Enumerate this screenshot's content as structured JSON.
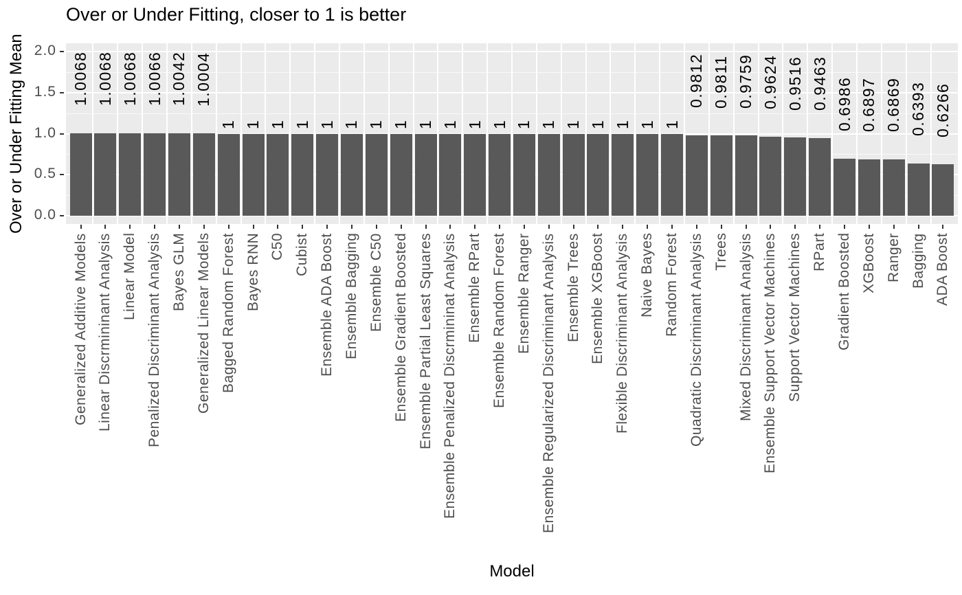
{
  "chart_data": {
    "type": "bar",
    "title": "Over or Under Fitting, closer to 1 is better",
    "xlabel": "Model",
    "ylabel": "Over or Under Fitting Mean",
    "ylim": [
      -0.1,
      2.1
    ],
    "yticks_major": [
      0.0,
      0.5,
      1.0,
      1.5,
      2.0
    ],
    "ytick_labels": [
      "0.0",
      "0.5",
      "1.0",
      "1.5",
      "2.0"
    ],
    "yticks_minor": [
      0.25,
      0.75,
      1.25,
      1.75
    ],
    "legend_position": "none",
    "grid": "white horizontal major/minor lines and white vertical separators on light gray panel",
    "bar_label_rotation_deg": 90,
    "x_label_rotation_deg": 90,
    "bars": [
      {
        "label": "Generalized Additive Models",
        "value": 1.0068,
        "value_label": "1.0068"
      },
      {
        "label": "Linear Discrmininant Analysis",
        "value": 1.0068,
        "value_label": "1.0068"
      },
      {
        "label": "Linear Model",
        "value": 1.0068,
        "value_label": "1.0068"
      },
      {
        "label": "Penalized Discriminant Analysis",
        "value": 1.0066,
        "value_label": "1.0066"
      },
      {
        "label": "Bayes GLM",
        "value": 1.0042,
        "value_label": "1.0042"
      },
      {
        "label": "Generalized Linear Models",
        "value": 1.0004,
        "value_label": "1.0004"
      },
      {
        "label": "Bagged Random Forest",
        "value": 1.0,
        "value_label": "1"
      },
      {
        "label": "Bayes RNN",
        "value": 1.0,
        "value_label": "1"
      },
      {
        "label": "C50",
        "value": 1.0,
        "value_label": "1"
      },
      {
        "label": "Cubist",
        "value": 1.0,
        "value_label": "1"
      },
      {
        "label": "Ensemble ADA Boost",
        "value": 1.0,
        "value_label": "1"
      },
      {
        "label": "Ensemble Bagging",
        "value": 1.0,
        "value_label": "1"
      },
      {
        "label": "Ensemble C50",
        "value": 1.0,
        "value_label": "1"
      },
      {
        "label": "Ensemble Gradient Boosted",
        "value": 1.0,
        "value_label": "1"
      },
      {
        "label": "Ensemble Partial Least Squares",
        "value": 1.0,
        "value_label": "1"
      },
      {
        "label": "Ensemble Penalized Discrmininat Analysis",
        "value": 1.0,
        "value_label": "1"
      },
      {
        "label": "Ensemble RPart",
        "value": 1.0,
        "value_label": "1"
      },
      {
        "label": "Ensemble Random Forest",
        "value": 1.0,
        "value_label": "1"
      },
      {
        "label": "Ensemble Ranger",
        "value": 1.0,
        "value_label": "1"
      },
      {
        "label": "Ensemble Regularized Discriminant Analysis",
        "value": 1.0,
        "value_label": "1"
      },
      {
        "label": "Ensemble Trees",
        "value": 1.0,
        "value_label": "1"
      },
      {
        "label": "Ensemble XGBoost",
        "value": 1.0,
        "value_label": "1"
      },
      {
        "label": "Flexible Discriminant Analysis",
        "value": 1.0,
        "value_label": "1"
      },
      {
        "label": "Naive Bayes",
        "value": 1.0,
        "value_label": "1"
      },
      {
        "label": "Random Forest",
        "value": 1.0,
        "value_label": "1"
      },
      {
        "label": "Quadratic Discriminant Analysis",
        "value": 0.9812,
        "value_label": "0.9812"
      },
      {
        "label": "Trees",
        "value": 0.9811,
        "value_label": "0.9811"
      },
      {
        "label": "Mixed Discriminant Analysis",
        "value": 0.9759,
        "value_label": "0.9759"
      },
      {
        "label": "Ensemble Support Vector Machines",
        "value": 0.9624,
        "value_label": "0.9624"
      },
      {
        "label": "Support Vector Machines",
        "value": 0.9516,
        "value_label": "0.9516"
      },
      {
        "label": "RPart",
        "value": 0.9463,
        "value_label": "0.9463"
      },
      {
        "label": "Gradient Boosted",
        "value": 0.6986,
        "value_label": "0.6986"
      },
      {
        "label": "XGBoost",
        "value": 0.6897,
        "value_label": "0.6897"
      },
      {
        "label": "Ranger",
        "value": 0.6869,
        "value_label": "0.6869"
      },
      {
        "label": "Bagging",
        "value": 0.6393,
        "value_label": "0.6393"
      },
      {
        "label": "ADA Boost",
        "value": 0.6266,
        "value_label": "0.6266"
      }
    ],
    "colors": {
      "bar": "#595959",
      "panel_bg": "#EBEBEB",
      "grid": "#FFFFFF",
      "axis_text": "#4D4D4D",
      "title_text": "#000000",
      "tick_mark": "#333333"
    }
  }
}
